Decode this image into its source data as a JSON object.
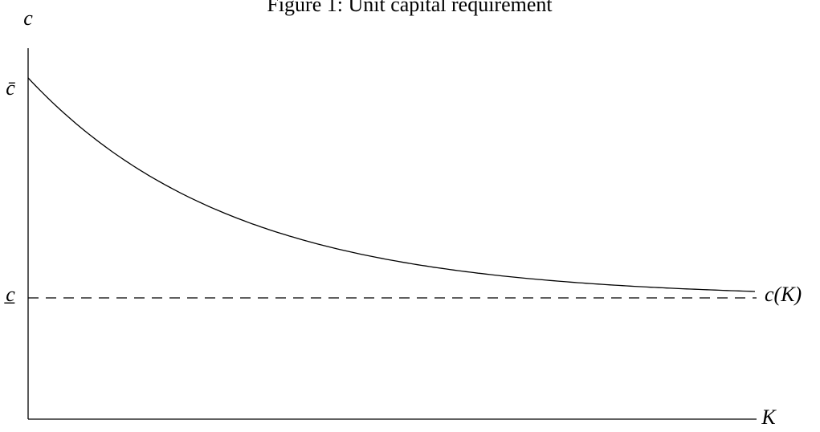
{
  "figure": {
    "title": "Figure 1: Unit capital requirement",
    "y_axis_label": "c",
    "x_axis_label": "K",
    "upper_bound_label": "c̄",
    "lower_bound_label": "c̲",
    "curve_label": "c(K)"
  }
}
